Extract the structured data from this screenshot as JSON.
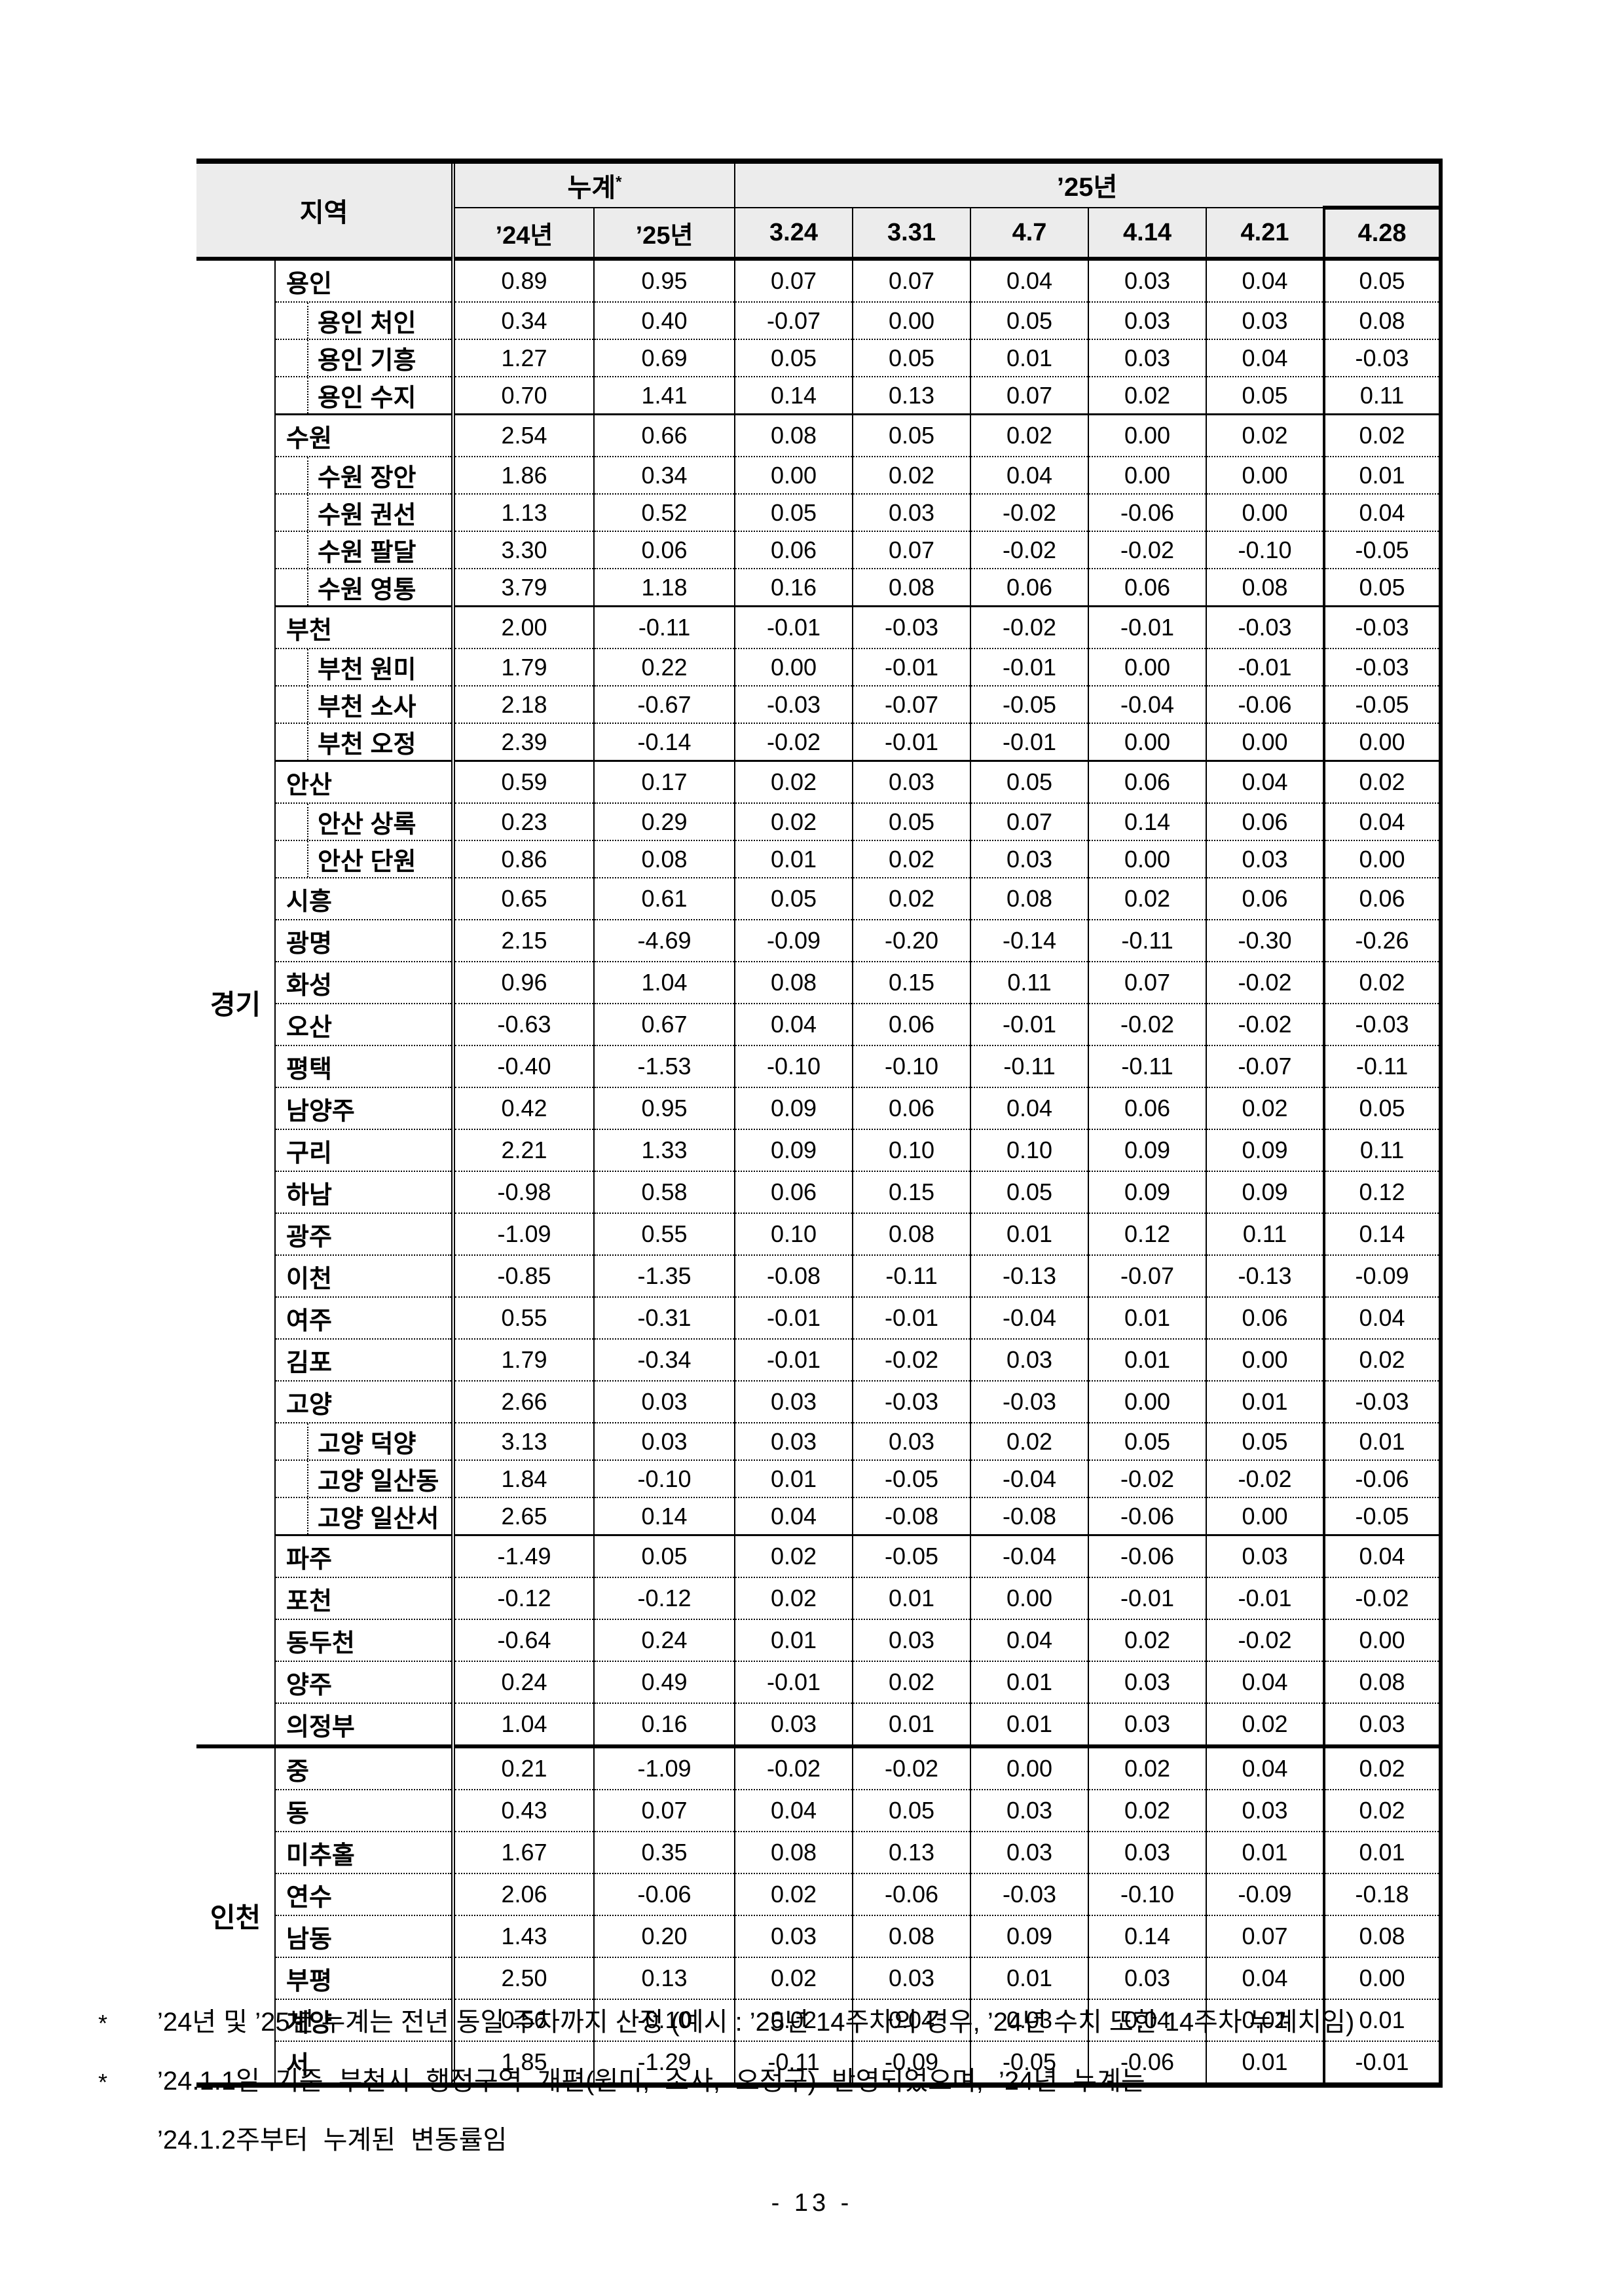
{
  "table": {
    "header": {
      "region": "지역",
      "cumulative": "누계",
      "cumulative_note_mark": "*",
      "year2025_group": "’25년",
      "sub": [
        "’24년",
        "’25년",
        "3.24",
        "3.31",
        "4.7",
        "4.14",
        "4.21",
        "4.28"
      ]
    },
    "groups": [
      {
        "province": "경기",
        "rows": [
          {
            "name": "용인",
            "level": 1,
            "sep": "dot",
            "values": [
              "0.89",
              "0.95",
              "0.07",
              "0.07",
              "0.04",
              "0.03",
              "0.04",
              "0.05"
            ]
          },
          {
            "name": "용인 처인",
            "level": 2,
            "sep": "dot",
            "values": [
              "0.34",
              "0.40",
              "-0.07",
              "0.00",
              "0.05",
              "0.03",
              "0.03",
              "0.08"
            ]
          },
          {
            "name": "용인 기흥",
            "level": 2,
            "sep": "dot",
            "values": [
              "1.27",
              "0.69",
              "0.05",
              "0.05",
              "0.01",
              "0.03",
              "0.04",
              "-0.03"
            ]
          },
          {
            "name": "용인 수지",
            "level": 2,
            "sep": "dot",
            "values": [
              "0.70",
              "1.41",
              "0.14",
              "0.13",
              "0.07",
              "0.02",
              "0.05",
              "0.11"
            ]
          },
          {
            "name": "수원",
            "level": 1,
            "sep": "solid",
            "values": [
              "2.54",
              "0.66",
              "0.08",
              "0.05",
              "0.02",
              "0.00",
              "0.02",
              "0.02"
            ]
          },
          {
            "name": "수원 장안",
            "level": 2,
            "sep": "dot",
            "values": [
              "1.86",
              "0.34",
              "0.00",
              "0.02",
              "0.04",
              "0.00",
              "0.00",
              "0.01"
            ]
          },
          {
            "name": "수원 권선",
            "level": 2,
            "sep": "dot",
            "values": [
              "1.13",
              "0.52",
              "0.05",
              "0.03",
              "-0.02",
              "-0.06",
              "0.00",
              "0.04"
            ]
          },
          {
            "name": "수원 팔달",
            "level": 2,
            "sep": "dot",
            "values": [
              "3.30",
              "0.06",
              "0.06",
              "0.07",
              "-0.02",
              "-0.02",
              "-0.10",
              "-0.05"
            ]
          },
          {
            "name": "수원 영통",
            "level": 2,
            "sep": "dot",
            "values": [
              "3.79",
              "1.18",
              "0.16",
              "0.08",
              "0.06",
              "0.06",
              "0.08",
              "0.05"
            ]
          },
          {
            "name": "부천",
            "level": 1,
            "sep": "solid",
            "values": [
              "2.00",
              "-0.11",
              "-0.01",
              "-0.03",
              "-0.02",
              "-0.01",
              "-0.03",
              "-0.03"
            ]
          },
          {
            "name": "부천 원미",
            "level": 2,
            "sep": "dot",
            "values": [
              "1.79",
              "0.22",
              "0.00",
              "-0.01",
              "-0.01",
              "0.00",
              "-0.01",
              "-0.03"
            ]
          },
          {
            "name": "부천 소사",
            "level": 2,
            "sep": "dot",
            "values": [
              "2.18",
              "-0.67",
              "-0.03",
              "-0.07",
              "-0.05",
              "-0.04",
              "-0.06",
              "-0.05"
            ]
          },
          {
            "name": "부천 오정",
            "level": 2,
            "sep": "dot",
            "values": [
              "2.39",
              "-0.14",
              "-0.02",
              "-0.01",
              "-0.01",
              "0.00",
              "0.00",
              "0.00"
            ]
          },
          {
            "name": "안산",
            "level": 1,
            "sep": "solid",
            "values": [
              "0.59",
              "0.17",
              "0.02",
              "0.03",
              "0.05",
              "0.06",
              "0.04",
              "0.02"
            ]
          },
          {
            "name": "안산 상록",
            "level": 2,
            "sep": "dot",
            "values": [
              "0.23",
              "0.29",
              "0.02",
              "0.05",
              "0.07",
              "0.14",
              "0.06",
              "0.04"
            ]
          },
          {
            "name": "안산 단원",
            "level": 2,
            "sep": "dot",
            "values": [
              "0.86",
              "0.08",
              "0.01",
              "0.02",
              "0.03",
              "0.00",
              "0.03",
              "0.00"
            ]
          },
          {
            "name": "시흥",
            "level": 1,
            "sep": "dot",
            "values": [
              "0.65",
              "0.61",
              "0.05",
              "0.02",
              "0.08",
              "0.02",
              "0.06",
              "0.06"
            ]
          },
          {
            "name": "광명",
            "level": 1,
            "sep": "dot",
            "values": [
              "2.15",
              "-4.69",
              "-0.09",
              "-0.20",
              "-0.14",
              "-0.11",
              "-0.30",
              "-0.26"
            ]
          },
          {
            "name": "화성",
            "level": 1,
            "sep": "dot",
            "values": [
              "0.96",
              "1.04",
              "0.08",
              "0.15",
              "0.11",
              "0.07",
              "-0.02",
              "0.02"
            ]
          },
          {
            "name": "오산",
            "level": 1,
            "sep": "dot",
            "values": [
              "-0.63",
              "0.67",
              "0.04",
              "0.06",
              "-0.01",
              "-0.02",
              "-0.02",
              "-0.03"
            ]
          },
          {
            "name": "평택",
            "level": 1,
            "sep": "dot",
            "values": [
              "-0.40",
              "-1.53",
              "-0.10",
              "-0.10",
              "-0.11",
              "-0.11",
              "-0.07",
              "-0.11"
            ]
          },
          {
            "name": "남양주",
            "level": 1,
            "sep": "dot",
            "values": [
              "0.42",
              "0.95",
              "0.09",
              "0.06",
              "0.04",
              "0.06",
              "0.02",
              "0.05"
            ]
          },
          {
            "name": "구리",
            "level": 1,
            "sep": "dot",
            "values": [
              "2.21",
              "1.33",
              "0.09",
              "0.10",
              "0.10",
              "0.09",
              "0.09",
              "0.11"
            ]
          },
          {
            "name": "하남",
            "level": 1,
            "sep": "dot",
            "values": [
              "-0.98",
              "0.58",
              "0.06",
              "0.15",
              "0.05",
              "0.09",
              "0.09",
              "0.12"
            ]
          },
          {
            "name": "광주",
            "level": 1,
            "sep": "dot",
            "values": [
              "-1.09",
              "0.55",
              "0.10",
              "0.08",
              "0.01",
              "0.12",
              "0.11",
              "0.14"
            ]
          },
          {
            "name": "이천",
            "level": 1,
            "sep": "dot",
            "values": [
              "-0.85",
              "-1.35",
              "-0.08",
              "-0.11",
              "-0.13",
              "-0.07",
              "-0.13",
              "-0.09"
            ]
          },
          {
            "name": "여주",
            "level": 1,
            "sep": "dot",
            "values": [
              "0.55",
              "-0.31",
              "-0.01",
              "-0.01",
              "-0.04",
              "0.01",
              "0.06",
              "0.04"
            ]
          },
          {
            "name": "김포",
            "level": 1,
            "sep": "dot",
            "values": [
              "1.79",
              "-0.34",
              "-0.01",
              "-0.02",
              "0.03",
              "0.01",
              "0.00",
              "0.02"
            ]
          },
          {
            "name": "고양",
            "level": 1,
            "sep": "dot",
            "values": [
              "2.66",
              "0.03",
              "0.03",
              "-0.03",
              "-0.03",
              "0.00",
              "0.01",
              "-0.03"
            ]
          },
          {
            "name": "고양 덕양",
            "level": 2,
            "sep": "dot",
            "values": [
              "3.13",
              "0.03",
              "0.03",
              "0.03",
              "0.02",
              "0.05",
              "0.05",
              "0.01"
            ]
          },
          {
            "name": "고양 일산동",
            "level": 2,
            "sep": "dot",
            "values": [
              "1.84",
              "-0.10",
              "0.01",
              "-0.05",
              "-0.04",
              "-0.02",
              "-0.02",
              "-0.06"
            ]
          },
          {
            "name": "고양 일산서",
            "level": 2,
            "sep": "dot",
            "values": [
              "2.65",
              "0.14",
              "0.04",
              "-0.08",
              "-0.08",
              "-0.06",
              "0.00",
              "-0.05"
            ]
          },
          {
            "name": "파주",
            "level": 1,
            "sep": "solid",
            "values": [
              "-1.49",
              "0.05",
              "0.02",
              "-0.05",
              "-0.04",
              "-0.06",
              "0.03",
              "0.04"
            ]
          },
          {
            "name": "포천",
            "level": 1,
            "sep": "dot",
            "values": [
              "-0.12",
              "-0.12",
              "0.02",
              "0.01",
              "0.00",
              "-0.01",
              "-0.01",
              "-0.02"
            ]
          },
          {
            "name": "동두천",
            "level": 1,
            "sep": "dot",
            "values": [
              "-0.64",
              "0.24",
              "0.01",
              "0.03",
              "0.04",
              "0.02",
              "-0.02",
              "0.00"
            ]
          },
          {
            "name": "양주",
            "level": 1,
            "sep": "dot",
            "values": [
              "0.24",
              "0.49",
              "-0.01",
              "0.02",
              "0.01",
              "0.03",
              "0.04",
              "0.08"
            ]
          },
          {
            "name": "의정부",
            "level": 1,
            "sep": "dot",
            "values": [
              "1.04",
              "0.16",
              "0.03",
              "0.01",
              "0.01",
              "0.03",
              "0.02",
              "0.03"
            ]
          }
        ]
      },
      {
        "province": "인천",
        "rows": [
          {
            "name": "중",
            "level": 1,
            "sep": "dot",
            "values": [
              "0.21",
              "-1.09",
              "-0.02",
              "-0.02",
              "0.00",
              "0.02",
              "0.04",
              "0.02"
            ]
          },
          {
            "name": "동",
            "level": 1,
            "sep": "dot",
            "values": [
              "0.43",
              "0.07",
              "0.04",
              "0.05",
              "0.03",
              "0.02",
              "0.03",
              "0.02"
            ]
          },
          {
            "name": "미추홀",
            "level": 1,
            "sep": "dot",
            "values": [
              "1.67",
              "0.35",
              "0.08",
              "0.13",
              "0.03",
              "0.03",
              "0.01",
              "0.01"
            ]
          },
          {
            "name": "연수",
            "level": 1,
            "sep": "dot",
            "values": [
              "2.06",
              "-0.06",
              "0.02",
              "-0.06",
              "-0.03",
              "-0.10",
              "-0.09",
              "-0.18"
            ]
          },
          {
            "name": "남동",
            "level": 1,
            "sep": "dot",
            "values": [
              "1.43",
              "0.20",
              "0.03",
              "0.08",
              "0.09",
              "0.14",
              "0.07",
              "0.08"
            ]
          },
          {
            "name": "부평",
            "level": 1,
            "sep": "dot",
            "values": [
              "2.50",
              "0.13",
              "0.02",
              "0.03",
              "0.01",
              "0.03",
              "0.04",
              "0.00"
            ]
          },
          {
            "name": "계양",
            "level": 1,
            "sep": "dot",
            "values": [
              "0.56",
              "-0.10",
              "0.02",
              "0.04",
              "0.03",
              "0.04",
              "0.01",
              "0.01"
            ]
          },
          {
            "name": "서",
            "level": 1,
            "sep": "dot",
            "values": [
              "1.85",
              "-1.29",
              "-0.11",
              "-0.09",
              "-0.05",
              "-0.06",
              "0.01",
              "-0.01"
            ]
          }
        ]
      }
    ]
  },
  "footnotes": [
    {
      "mark": "*",
      "text": "’24년 및 ’25년 누계는 전년 동일 주차까지 산정 (예시 : ’25년 14주차의 경우, ’24년 수치 또한 14주차 누계치임)"
    },
    {
      "mark": "*",
      "text": "’24.1.1일 기준 부천시 행정구역 개편(원미, 소사, 오정구) 반영되었으며, ’24년 누계는"
    },
    {
      "mark": "",
      "text": "’24.1.2주부터 누계된 변동률임"
    }
  ],
  "page_number": "- 13 -"
}
